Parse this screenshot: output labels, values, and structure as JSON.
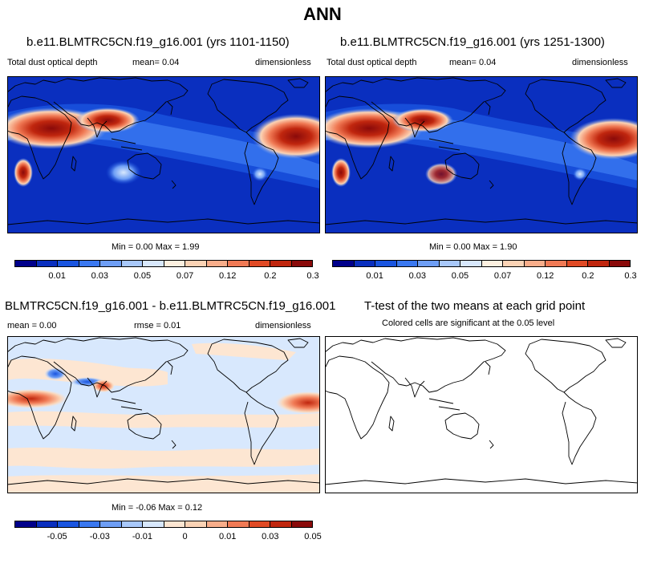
{
  "title": "ANN",
  "panels": [
    {
      "title": "b.e11.BLMTRC5CN.f19_g16.001 (yrs 1101-1150)",
      "left_label": "Total dust optical depth",
      "center_label": "mean=   0.04",
      "right_label": "dimensionless",
      "minmax": "Min =   0.00 Max =   1.99"
    },
    {
      "title": "b.e11.BLMTRC5CN.f19_g16.001 (yrs 1251-1300)",
      "left_label": "Total dust optical depth",
      "center_label": "mean=   0.04",
      "right_label": "dimensionless",
      "minmax": "Min =   0.00 Max =   1.90"
    },
    {
      "title": "BLMTRC5CN.f19_g16.001 - b.e11.BLMTRC5CN.f19_g16.001",
      "left_label": "mean =   0.00",
      "center_label": "rmse =   0.01",
      "right_label": "dimensionless",
      "minmax": "Min =  -0.06 Max =   0.12"
    },
    {
      "title": "T-test of the two means at each grid point",
      "subtitle": "Colored cells are significant at the 0.05 level"
    }
  ],
  "colorbar_abs": {
    "colors": [
      "#00008b",
      "#0a2fbf",
      "#1a55e0",
      "#3a78f0",
      "#6e9ef5",
      "#a8c8fa",
      "#d8e8fd",
      "#fdf0e0",
      "#fbd3b5",
      "#f8ad8a",
      "#f07a55",
      "#e04a25",
      "#c0260e",
      "#8a0a0a"
    ],
    "labels": [
      "0.01",
      "0.03",
      "0.05",
      "0.07",
      "0.12",
      "0.2",
      "0.3"
    ]
  },
  "colorbar_diff": {
    "colors": [
      "#00008b",
      "#0a2fbf",
      "#1a55e0",
      "#3a78f0",
      "#6e9ef5",
      "#a8c8fa",
      "#d8e8fd",
      "#fde6d2",
      "#fbd3b5",
      "#f8ad8a",
      "#f07a55",
      "#e04a25",
      "#c0260e",
      "#8a0a0a"
    ],
    "labels": [
      "-0.05",
      "-0.03",
      "-0.01",
      "0",
      "0.01",
      "0.03",
      "0.05"
    ]
  }
}
